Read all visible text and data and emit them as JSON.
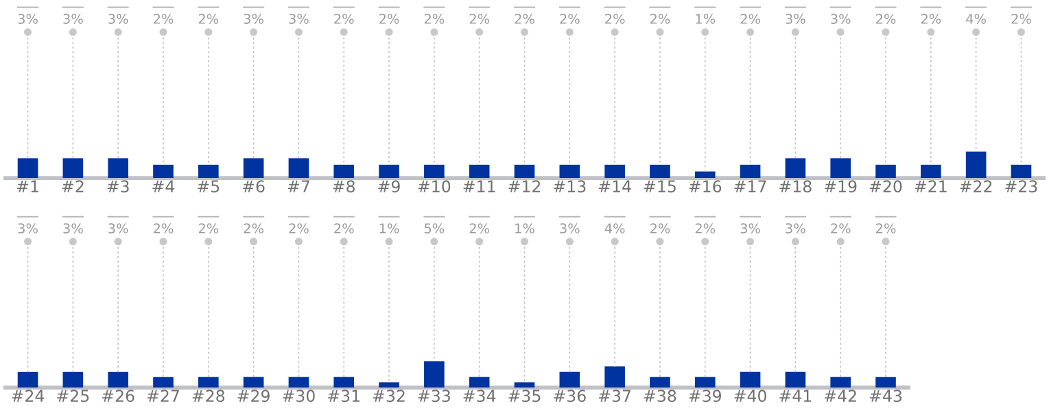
{
  "chart_data": [
    {
      "type": "bar",
      "categories": [
        "#1",
        "#2",
        "#3",
        "#4",
        "#5",
        "#6",
        "#7",
        "#8",
        "#9",
        "#10",
        "#11",
        "#12",
        "#13",
        "#14",
        "#15",
        "#16",
        "#17",
        "#18",
        "#19",
        "#20",
        "#21",
        "#22",
        "#23"
      ],
      "series": [
        {
          "color": "#0033a0",
          "values": [
            3,
            3,
            3,
            2,
            2,
            3,
            3,
            2,
            2,
            2,
            2,
            2,
            2,
            2,
            2,
            1,
            2,
            3,
            3,
            2,
            2,
            4,
            2
          ],
          "value_labels": [
            "3%",
            "3%",
            "3%",
            "2%",
            "2%",
            "3%",
            "3%",
            "2%",
            "2%",
            "2%",
            "2%",
            "2%",
            "2%",
            "2%",
            "2%",
            "1%",
            "2%",
            "3%",
            "3%",
            "2%",
            "2%",
            "4%",
            "2%"
          ]
        }
      ],
      "tick_labels": "x",
      "legend": false
    },
    {
      "type": "bar",
      "categories": [
        "#24",
        "#25",
        "#26",
        "#27",
        "#28",
        "#29",
        "#30",
        "#31",
        "#32",
        "#33",
        "#34",
        "#35",
        "#36",
        "#37",
        "#38",
        "#39",
        "#40",
        "#41",
        "#42",
        "#43"
      ],
      "series": [
        {
          "color": "#0033a0",
          "values": [
            3,
            3,
            3,
            2,
            2,
            2,
            2,
            2,
            1,
            5,
            2,
            1,
            3,
            4,
            2,
            2,
            3,
            3,
            2,
            2
          ],
          "value_labels": [
            "3%",
            "3%",
            "3%",
            "2%",
            "2%",
            "2%",
            "2%",
            "2%",
            "1%",
            "5%",
            "2%",
            "1%",
            "3%",
            "4%",
            "2%",
            "2%",
            "3%",
            "3%",
            "2%",
            "2%"
          ]
        }
      ],
      "tick_labels": "x",
      "legend": false
    }
  ]
}
